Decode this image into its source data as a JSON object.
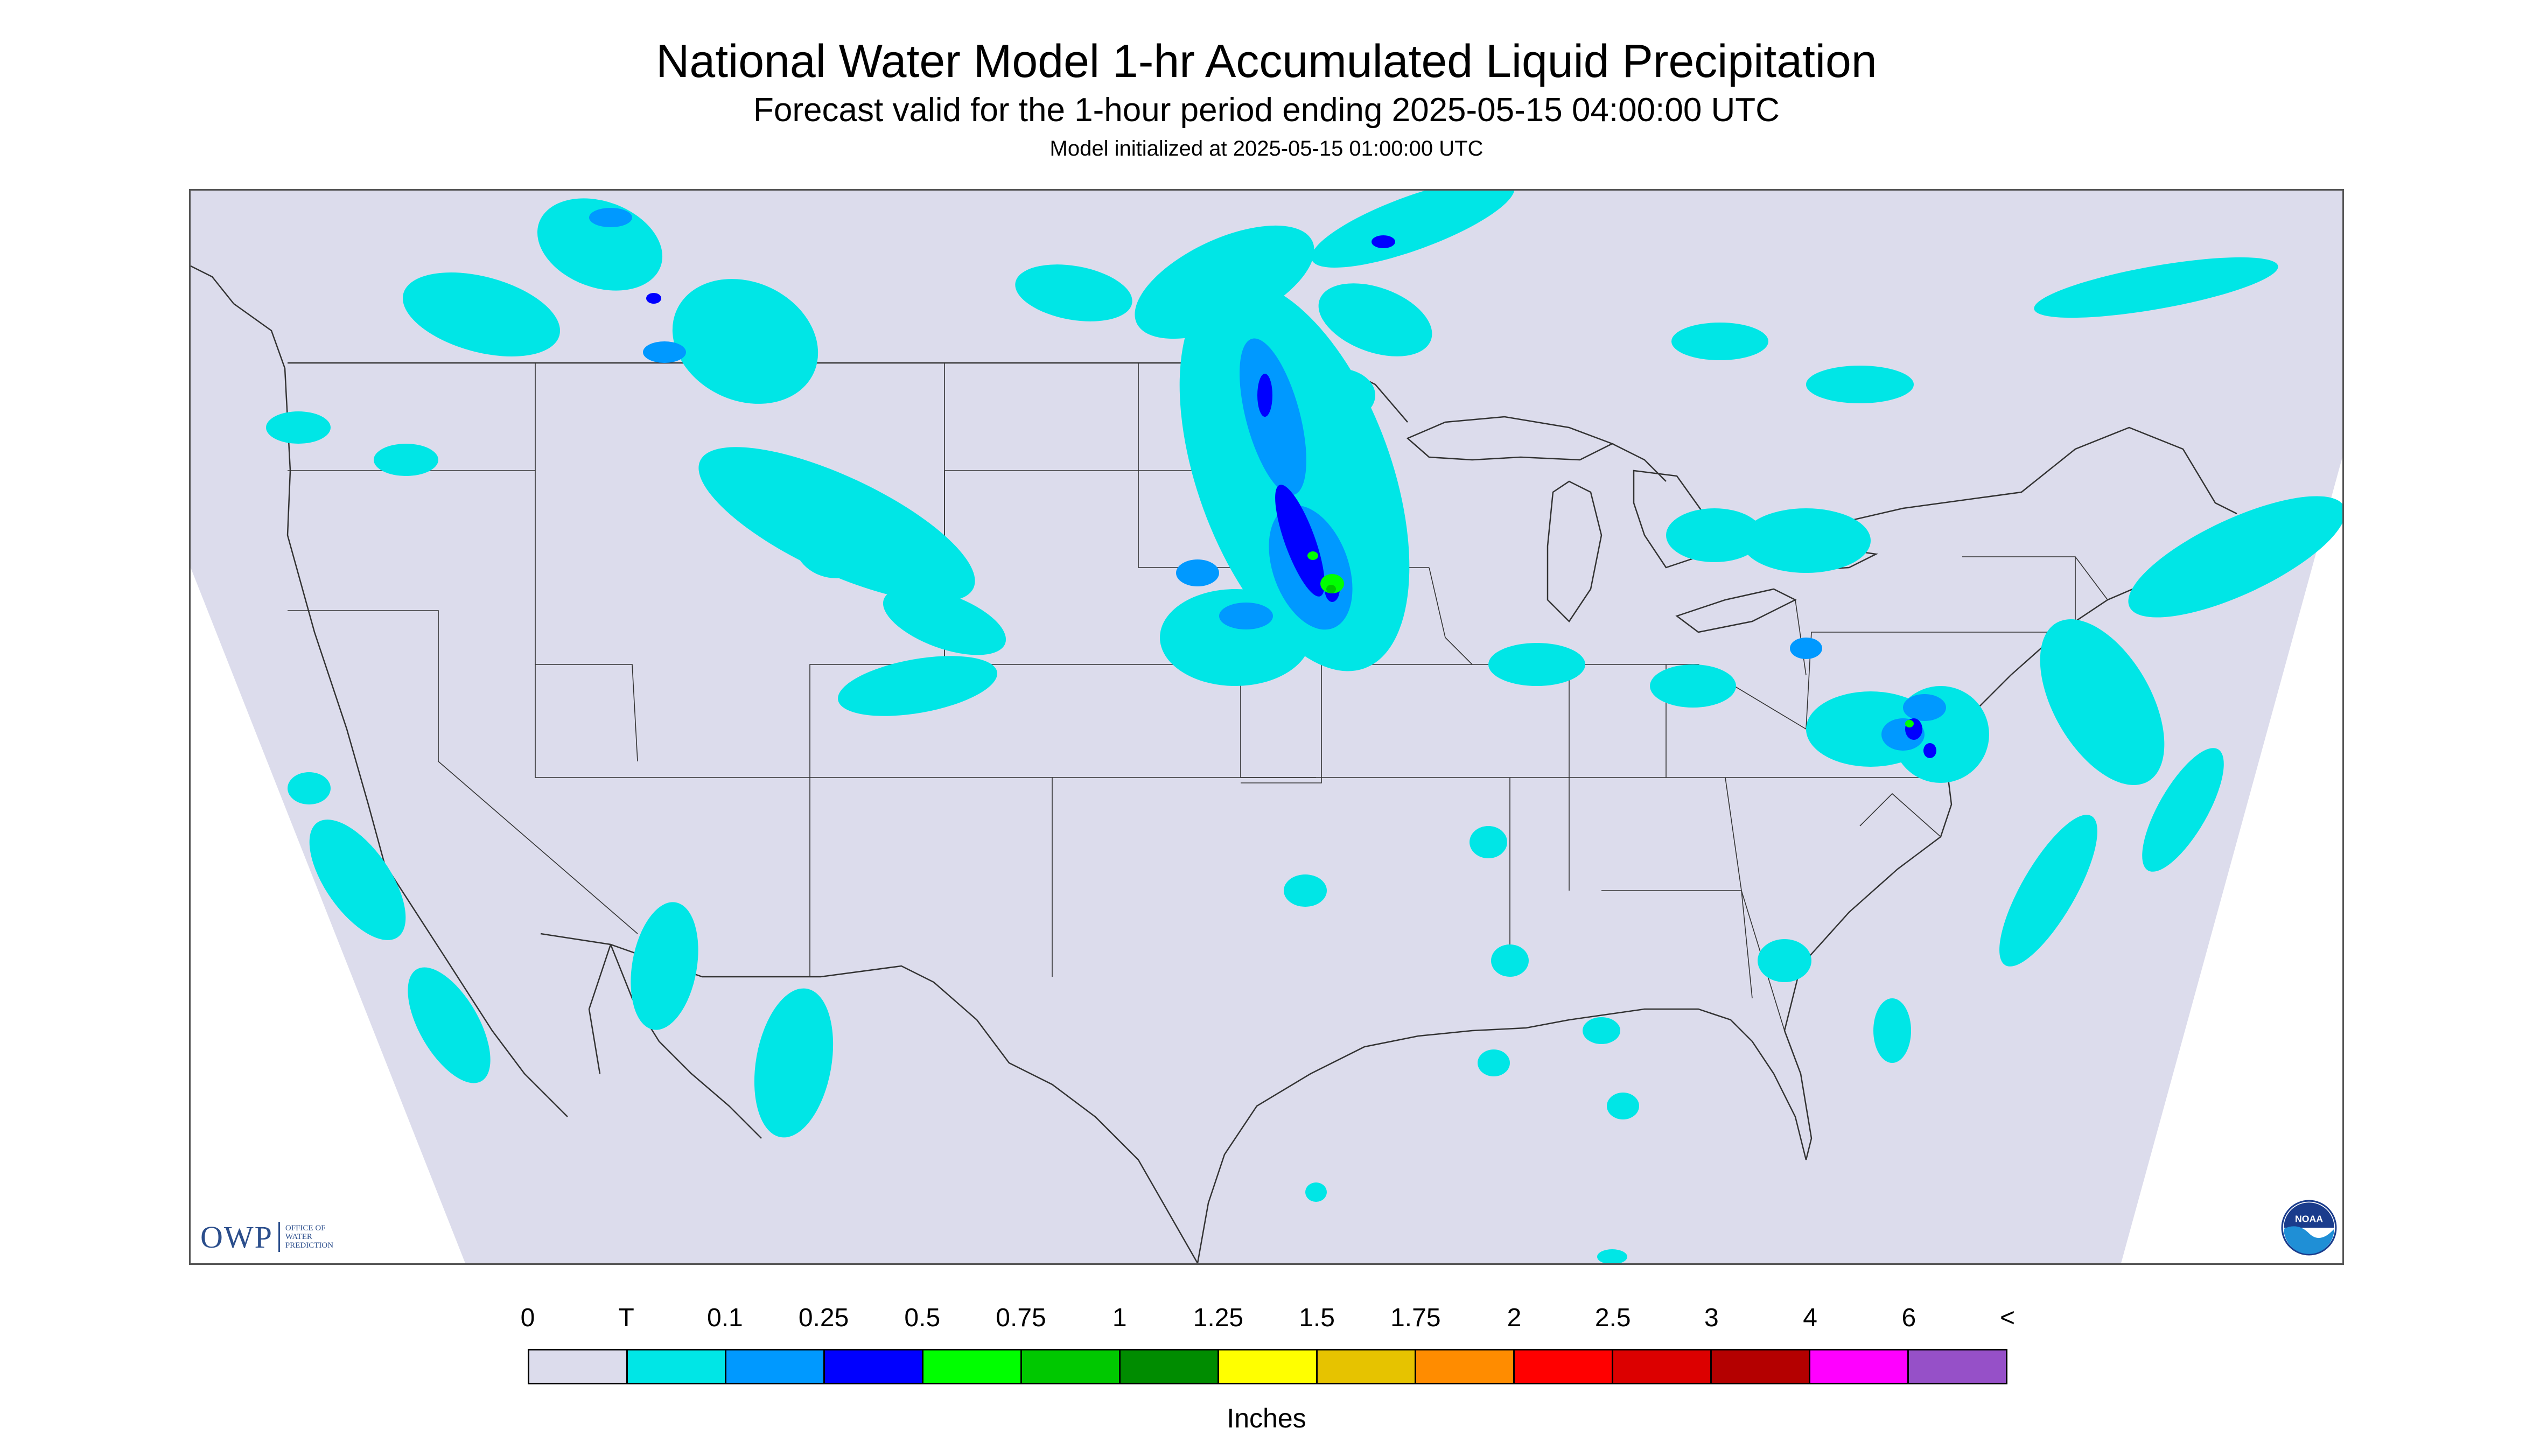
{
  "header": {
    "title": "National Water Model 1-hr Accumulated Liquid Precipitation",
    "subtitle": "Forecast valid for the 1-hour period ending 2025-05-15 04:00:00 UTC",
    "init_note": "Model initialized at 2025-05-15 01:00:00 UTC"
  },
  "map": {
    "background_color": "#dcdcec",
    "outside_color": "#ffffff",
    "border_color": "#333333",
    "precip_colors": {
      "trace": "#00e6e6",
      "light": "#0099ff",
      "moderate": "#0000ff",
      "heavy": "#00ff00",
      "heavy2": "#00c800"
    }
  },
  "logos": {
    "owp": {
      "letters": "OWP",
      "line1": "OFFICE OF",
      "line2": "WATER",
      "line3": "PREDICTION"
    },
    "noaa": {
      "text": "NOAA"
    }
  },
  "legend": {
    "labels": [
      "0",
      "T",
      "0.1",
      "0.25",
      "0.5",
      "0.75",
      "1",
      "1.25",
      "1.5",
      "1.75",
      "2",
      "2.5",
      "3",
      "4",
      "6",
      "<"
    ],
    "colors": [
      "#dcdcec",
      "#00e6e6",
      "#0099ff",
      "#0000ff",
      "#00ff00",
      "#00c800",
      "#008c00",
      "#ffff00",
      "#e6c300",
      "#ff8c00",
      "#ff0000",
      "#dc0000",
      "#b40000",
      "#ff00ff",
      "#9650c8"
    ],
    "units": "Inches"
  }
}
